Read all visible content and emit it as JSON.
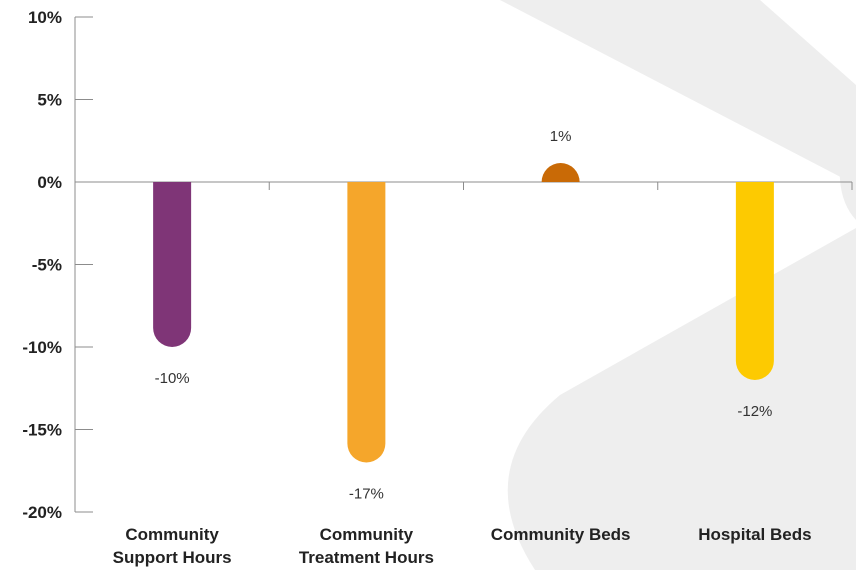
{
  "chart_data": {
    "type": "bar",
    "categories": [
      [
        "Community",
        "Support Hours"
      ],
      [
        "Community",
        "Treatment Hours"
      ],
      [
        "Community Beds"
      ],
      [
        "Hospital Beds"
      ]
    ],
    "values": [
      -10,
      -17,
      1,
      -12
    ],
    "value_labels": [
      "-10%",
      "-17%",
      "1%",
      "-12%"
    ],
    "bar_colors": [
      "#7f3577",
      "#f5a62b",
      "#c96a06",
      "#fdca01"
    ],
    "yticks": [
      10,
      5,
      0,
      -5,
      -10,
      -15,
      -20
    ],
    "ytick_labels": [
      "10%",
      "5%",
      "0%",
      "-5%",
      "-10%",
      "-15%",
      "-20%"
    ],
    "ylim": [
      -20,
      10
    ],
    "grid": false,
    "axis_color": "#8c8c8c",
    "background_shape_color": "#eeeeee"
  }
}
